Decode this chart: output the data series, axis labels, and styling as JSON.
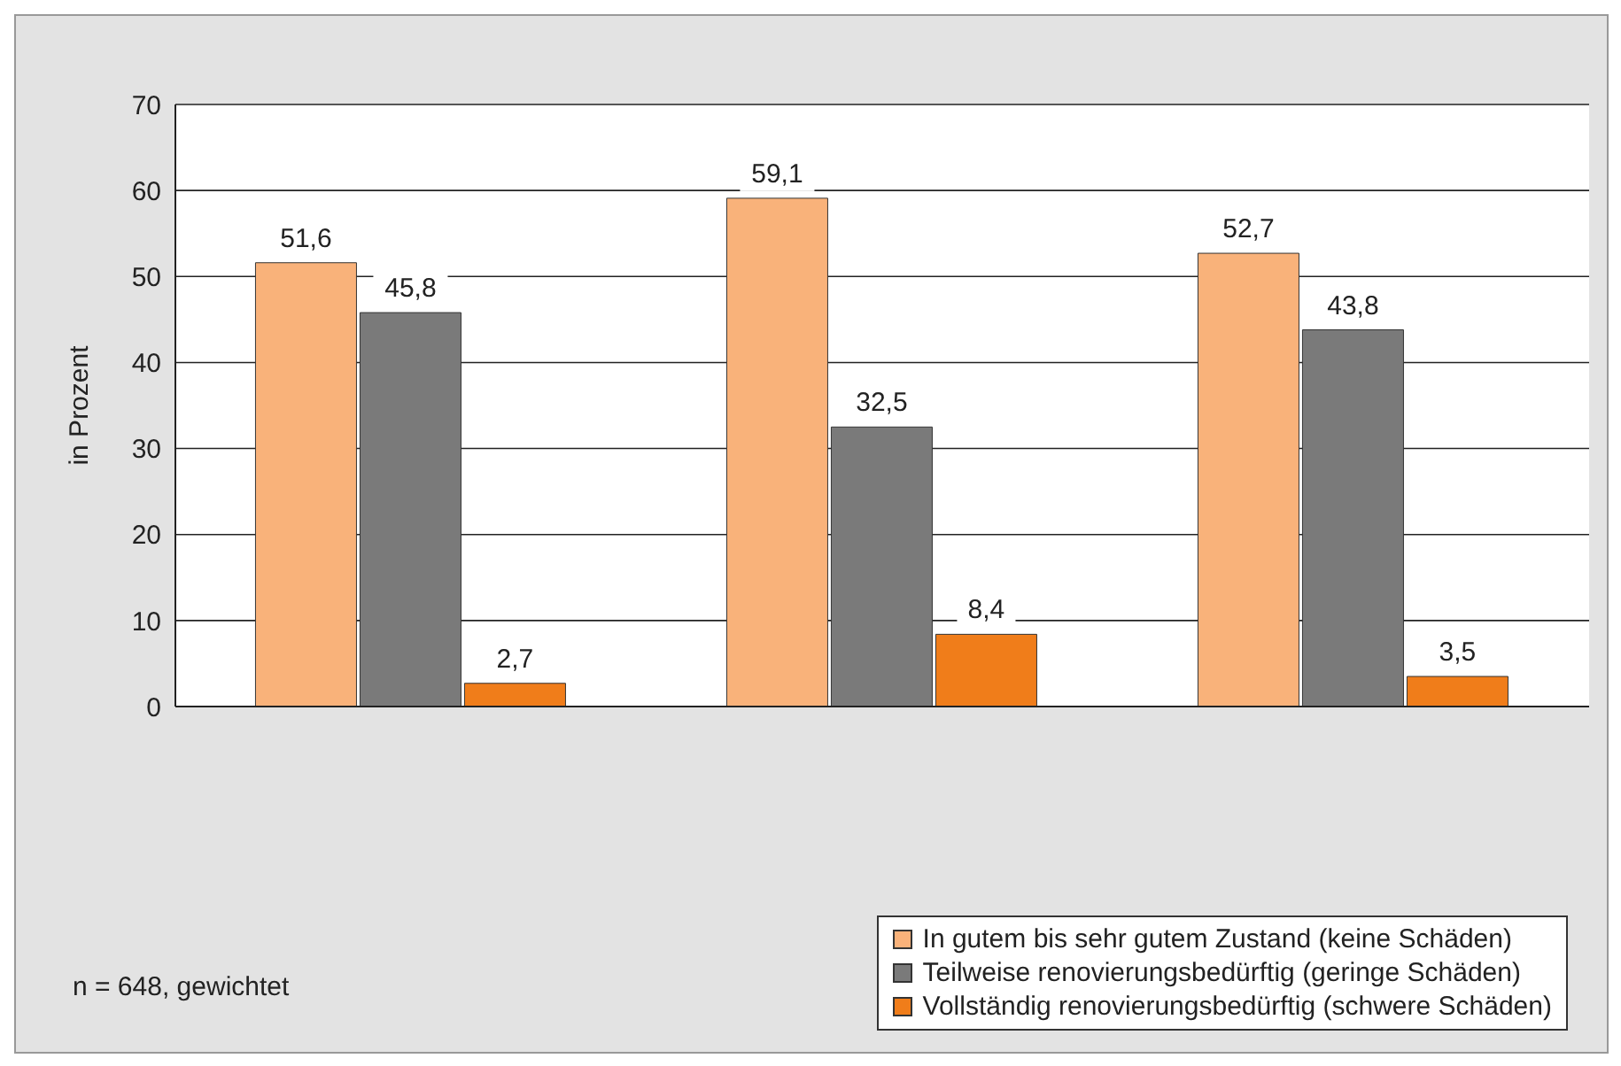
{
  "chart_data": {
    "type": "bar",
    "ylabel": "in Prozent",
    "categories": [
      null,
      null,
      null
    ],
    "series": [
      {
        "name": "In gutem bis sehr gutem Zustand (keine Schäden)",
        "color": "#f9b27a",
        "values": [
          51.6,
          59.1,
          52.7
        ],
        "value_labels": [
          "51,6",
          "59,1",
          "52,7"
        ]
      },
      {
        "name": "Teilweise renovierungsbedürftig (geringe Schäden)",
        "color": "#7a7a7a",
        "values": [
          45.8,
          32.5,
          43.8
        ],
        "value_labels": [
          "45,8",
          "32,5",
          "43,8"
        ]
      },
      {
        "name": "Vollständig renovierungsbedürftig (schwere Schäden)",
        "color": "#f07d1a",
        "values": [
          2.7,
          8.4,
          3.5
        ],
        "value_labels": [
          "2,7",
          "8,4",
          "3,5"
        ]
      }
    ],
    "ylim": [
      0,
      70
    ],
    "yticks": [
      0,
      10,
      20,
      30,
      40,
      50,
      60,
      70
    ],
    "grid": "y",
    "legend": "bottom right",
    "annotations": [
      "n = 648, gewichtet"
    ]
  }
}
